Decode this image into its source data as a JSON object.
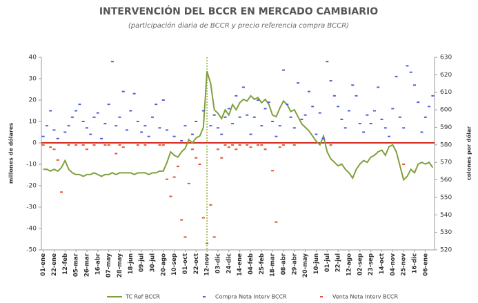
{
  "chart_data": {
    "type": "line",
    "title": "INTERVENCIÓN DEL BCCR EN MERCADO CAMBIARIO",
    "subtitle": "(participación diaria de BCCR y precio referencia compra BCCR)",
    "ylabel": "millones de dólares",
    "y2label": "colones por dólar",
    "categories": [
      "01-ene",
      null,
      null,
      "22-ene",
      null,
      null,
      "12-feb",
      null,
      null,
      "05-mar",
      null,
      null,
      "26-mar",
      null,
      null,
      "16-abr",
      null,
      null,
      "07-may",
      null,
      null,
      "28-may",
      null,
      null,
      "18-jun",
      null,
      null,
      "09-jul",
      null,
      null,
      "30-jul",
      null,
      null,
      "20-ago",
      null,
      null,
      "10-sep",
      null,
      null,
      "01-oct",
      null,
      null,
      "22-oct",
      null,
      null,
      "12-nov",
      null,
      null,
      "03-dic",
      null,
      null,
      "24-dic",
      null,
      null,
      "14-ene",
      null,
      null,
      "04-feb",
      null,
      null,
      "25-feb",
      null,
      null,
      "18-mar",
      null,
      null,
      "08-abr",
      null,
      null,
      "29-abr",
      null,
      null,
      "20-may",
      null,
      null,
      "10-jun",
      null,
      null,
      "01-jul",
      null,
      null,
      "22-jul",
      null,
      null,
      "12-ago",
      null,
      null,
      "02-sep",
      null,
      null,
      "23-sep",
      null,
      null,
      "14-oct",
      null,
      null,
      "04-nov",
      null,
      null,
      "25-nov",
      null,
      null,
      "16-dic",
      null,
      null,
      "06-ene",
      null,
      null
    ],
    "series": [
      {
        "name": "TC Ref BCCR",
        "type": "line",
        "axis": "y2",
        "color": "#7f9f3c",
        "values": [
          566,
          566,
          565,
          566,
          565,
          567,
          571,
          566,
          564,
          563,
          563,
          562,
          563,
          563,
          564,
          563,
          562,
          563,
          563,
          564,
          563,
          564,
          564,
          564,
          564,
          563,
          564,
          564,
          564,
          563,
          564,
          564,
          565,
          565,
          570,
          576,
          574,
          573,
          576,
          578,
          583,
          581,
          584,
          585,
          590,
          622,
          615,
          600,
          598,
          595,
          600,
          597,
          603,
          600,
          604,
          606,
          605,
          608,
          606,
          607,
          604,
          606,
          603,
          597,
          596,
          601,
          605,
          603,
          599,
          600,
          596,
          592,
          590,
          588,
          585,
          582,
          580,
          585,
          576,
          572,
          570,
          568,
          569,
          566,
          564,
          561,
          566,
          569,
          571,
          570,
          573,
          574,
          576,
          577,
          574,
          579,
          580,
          576,
          568,
          560,
          562,
          566,
          564,
          569,
          570,
          569,
          570,
          567
        ]
      },
      {
        "name": "Compra Neta Interv BCCR",
        "type": "scatter",
        "color": "#4b5fd6",
        "values": [
          3,
          8,
          15,
          6,
          2,
          null,
          5,
          8,
          12,
          15,
          18,
          10,
          7,
          4,
          12,
          14,
          2,
          9,
          18,
          38,
          8,
          12,
          24,
          6,
          15,
          23,
          10,
          5,
          8,
          3,
          12,
          18,
          7,
          20,
          6,
          null,
          3,
          null,
          1,
          8,
          null,
          4,
          10,
          null,
          15,
          null,
          8,
          13,
          7,
          4,
          12,
          16,
          9,
          22,
          12,
          26,
          13,
          4,
          12,
          20,
          8,
          16,
          19,
          10,
          3,
          8,
          34,
          18,
          12,
          7,
          28,
          11,
          13,
          24,
          17,
          4,
          14,
          2,
          38,
          29,
          22,
          17,
          11,
          7,
          15,
          27,
          22,
          9,
          5,
          13,
          9,
          15,
          26,
          11,
          7,
          3,
          16,
          31,
          12,
          7,
          36,
          33,
          27,
          19,
          5,
          12,
          17,
          22
        ]
      },
      {
        "name": "Venta Neta Interv BCCR",
        "type": "scatter",
        "color": "#e0532f",
        "values": [
          -1,
          null,
          -2,
          -3,
          -8,
          -23,
          null,
          -1,
          null,
          -1,
          null,
          -1,
          -3,
          null,
          -1,
          null,
          null,
          -1,
          -1,
          null,
          -5,
          -1,
          -2,
          null,
          null,
          null,
          -1,
          null,
          -1,
          null,
          null,
          null,
          -1,
          -1,
          -17,
          -25,
          -16,
          -11,
          -36,
          -44,
          -19,
          -3,
          -7,
          -10,
          -35,
          -47,
          -29,
          -44,
          -3,
          -7,
          -1,
          -2,
          -1,
          -3,
          -1,
          null,
          -1,
          -2,
          null,
          -1,
          -1,
          -3,
          null,
          -13,
          -37,
          -2,
          -1,
          null,
          null,
          -1,
          null,
          null,
          null,
          null,
          null,
          null,
          null,
          null,
          null,
          -1,
          null,
          null,
          null,
          null,
          null,
          null,
          null,
          null,
          null,
          null,
          null,
          null,
          null,
          null,
          null,
          null,
          null,
          null,
          null,
          -10,
          null,
          null,
          null,
          null,
          null,
          null,
          null,
          null
        ]
      }
    ],
    "ylim": [
      -50,
      40
    ],
    "yticks": [
      -50,
      -40,
      -30,
      -20,
      -10,
      0,
      10,
      20,
      30,
      40
    ],
    "y2lim": [
      520,
      630
    ],
    "y2ticks": [
      520,
      530,
      540,
      550,
      560,
      570,
      580,
      590,
      600,
      610,
      620,
      630
    ],
    "legend": "bottom"
  }
}
